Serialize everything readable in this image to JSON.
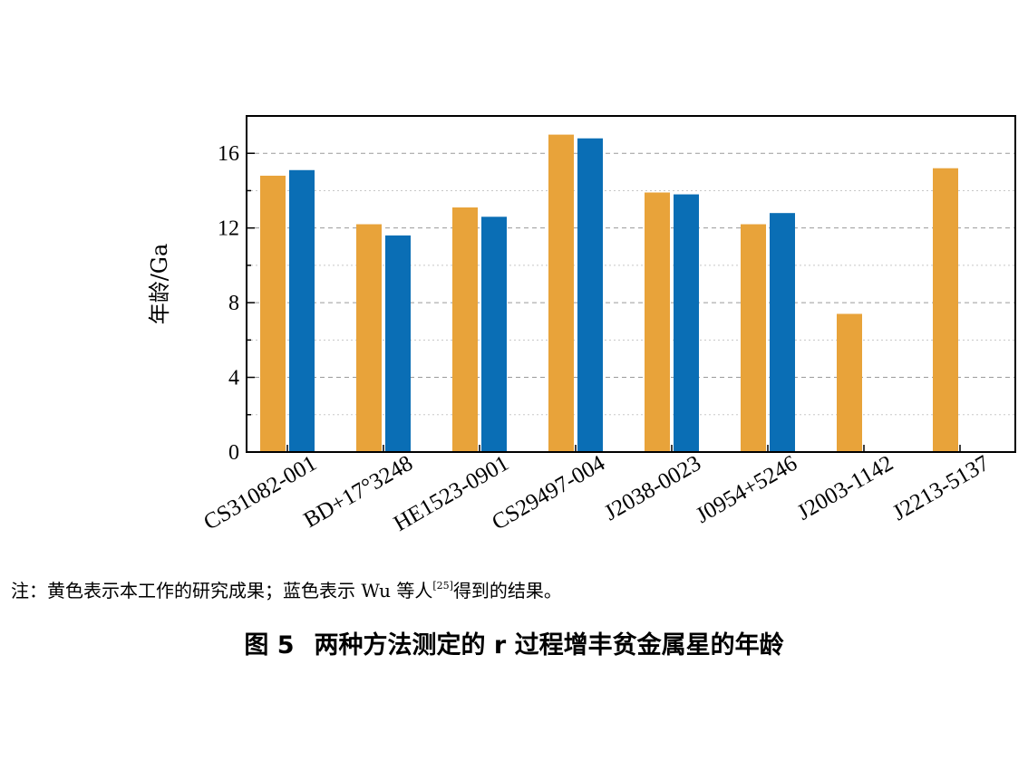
{
  "chart_data": {
    "type": "bar",
    "title": "",
    "xlabel": "",
    "ylabel": "年龄/Ga",
    "ylim": [
      0,
      18
    ],
    "yticks": [
      0,
      4,
      8,
      12,
      16
    ],
    "grid": true,
    "categories": [
      "CS31082-001",
      "BD+17°3248",
      "HE1523-0901",
      "CS29497-004",
      "J2038-0023",
      "J0954+5246",
      "J2003-1142",
      "J2213-5137"
    ],
    "series": [
      {
        "color": "#E8A33A",
        "values": [
          14.8,
          12.2,
          13.1,
          17.0,
          13.9,
          12.2,
          7.4,
          15.2
        ]
      },
      {
        "color": "#0A6EB5",
        "values": [
          15.1,
          11.6,
          12.6,
          16.8,
          13.8,
          12.8,
          null,
          null
        ]
      }
    ]
  },
  "note": {
    "text_before": "注：黄色表示本工作的研究成果；蓝色表示 Wu 等人",
    "ref": "[25]",
    "text_after": "得到的结果。"
  },
  "caption": {
    "figure_number": "图 5",
    "text": "两种方法测定的 r 过程增丰贫金属星的年龄"
  }
}
